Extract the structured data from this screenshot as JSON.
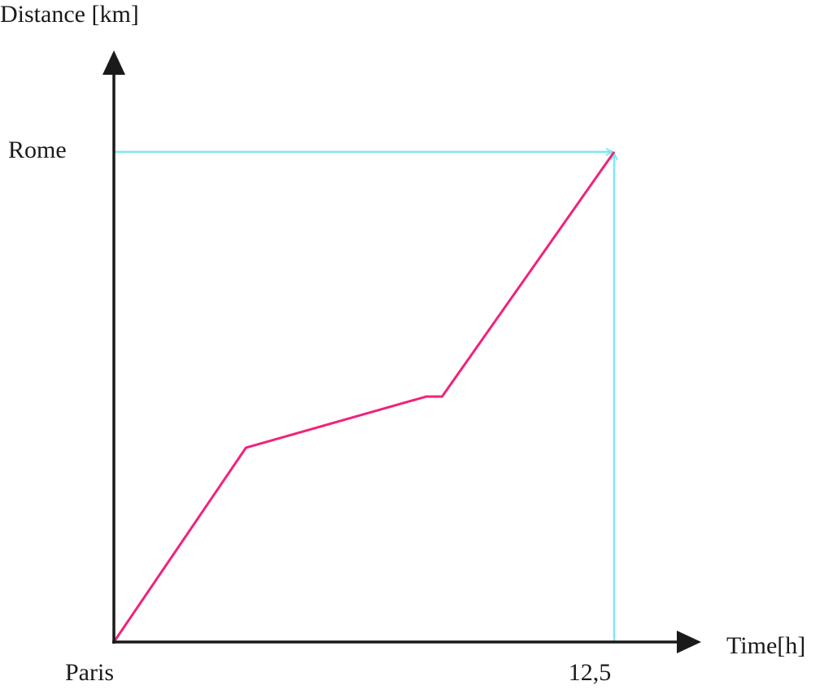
{
  "chart_data": {
    "type": "line",
    "y_label": "Distance [km]",
    "x_label": "Time[h]",
    "x": [
      0,
      3.3,
      7.8,
      8.2,
      12.5
    ],
    "series": [
      {
        "color": "#f0237a",
        "values": [
          0,
          563,
          711,
          711,
          1420
        ]
      }
    ],
    "xlim": [
      0,
      14.6
    ],
    "ylim": [
      0,
      1700
    ],
    "xticks": [
      {
        "value": 0,
        "label": "Paris"
      },
      {
        "value": 12.5,
        "label": "12,5"
      }
    ],
    "yticks": [
      {
        "value": 1420,
        "label": "Rome"
      }
    ],
    "guide_color": "#7fe8f0"
  }
}
